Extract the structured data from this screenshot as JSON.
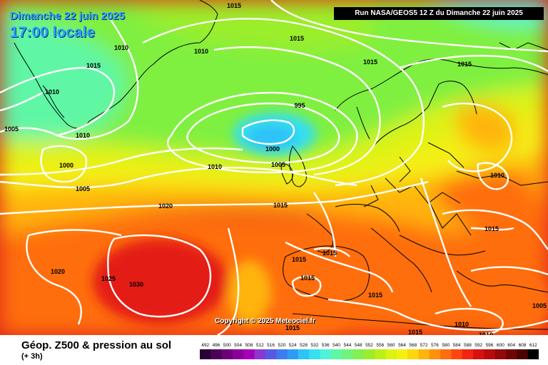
{
  "header": {
    "date": "Dimanche 22 juin 2025",
    "time": "17:00 locale",
    "run": "Run NASA/GEOS5 12 Z du Dimanche 22 juin 2025"
  },
  "copyright": "Copyright © 2025 Meteociel.fr",
  "product": {
    "title": "Géop. Z500 & pression au sol",
    "subtitle": "(+ 3h)"
  },
  "isobar_labels": [
    "1015",
    "1015",
    "1010",
    "1010",
    "1015",
    "1010",
    "1015",
    "1005",
    "1010",
    "995",
    "1000",
    "1000",
    "1005",
    "1005",
    "1010",
    "1010",
    "1015",
    "1015",
    "1020",
    "1020",
    "1025",
    "1030",
    "1015",
    "1015",
    "1015",
    "1015",
    "1015",
    "1010",
    "1010",
    "1005"
  ],
  "scale": {
    "labels": [
      "492",
      "496",
      "500",
      "504",
      "508",
      "512",
      "516",
      "520",
      "524",
      "528",
      "532",
      "536",
      "540",
      "544",
      "548",
      "552",
      "556",
      "560",
      "564",
      "568",
      "572",
      "576",
      "580",
      "584",
      "588",
      "592",
      "596",
      "600",
      "604",
      "608",
      "612"
    ],
    "colors": [
      "#2b0036",
      "#4d0058",
      "#6e0078",
      "#8c009a",
      "#a600b7",
      "#8a39d0",
      "#5858e6",
      "#3c7cf0",
      "#2e9cf5",
      "#2ec3f7",
      "#36dff2",
      "#4ef3d9",
      "#5ef7a6",
      "#6ef57a",
      "#83f04f",
      "#9bee2a",
      "#bcef17",
      "#dcf312",
      "#f4f012",
      "#ffd60d",
      "#ffb40b",
      "#ff910a",
      "#ff6d0c",
      "#ff4510",
      "#f12512",
      "#d81010",
      "#b80b0b",
      "#930808",
      "#700505",
      "#4c0303",
      "#000000"
    ]
  }
}
